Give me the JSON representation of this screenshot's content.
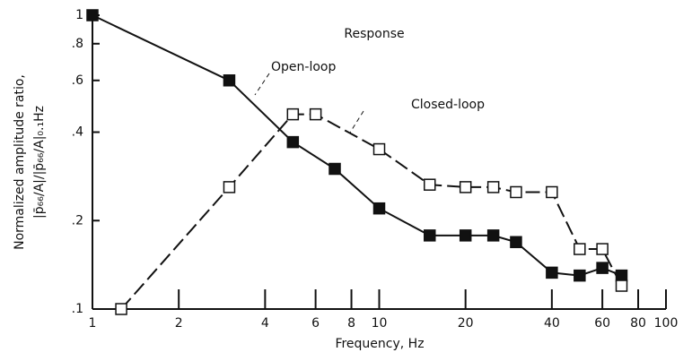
{
  "chart_data": {
    "type": "line",
    "title": "Response",
    "xlabel": "Frequency, Hz",
    "ylabel": [
      "Normalized amplitude ratio,",
      "|p̄₆₆/A|/|p̄₆₆/A|₀.₁Hz"
    ],
    "xlog": true,
    "ylog": true,
    "xlim": [
      1,
      100
    ],
    "ylim": [
      0.1,
      1
    ],
    "xticks": [
      1,
      2,
      4,
      6,
      8,
      10,
      20,
      40,
      60,
      80,
      100
    ],
    "yticks": [
      {
        "value": 0.1,
        "label": ".1"
      },
      {
        "value": 0.2,
        "label": ".2"
      },
      {
        "value": 0.4,
        "label": ".4"
      },
      {
        "value": 0.6,
        "label": ".6"
      },
      {
        "value": 0.8,
        "label": ".8"
      },
      1
    ],
    "series": [
      {
        "name": "Open-loop",
        "color": "#111111",
        "marker": "filled-square",
        "dash": "solid",
        "x": [
          1,
          3,
          5,
          7,
          10,
          15,
          20,
          25,
          30,
          40,
          50,
          60,
          70
        ],
        "values": [
          1,
          0.6,
          0.37,
          0.3,
          0.22,
          0.178,
          0.178,
          0.178,
          0.169,
          0.133,
          0.13,
          0.138,
          0.13
        ]
      },
      {
        "name": "Closed-loop",
        "color": "#111111",
        "marker": "open-square",
        "dash": "dashed",
        "x": [
          1.26,
          3,
          5,
          6,
          10,
          15,
          20,
          25,
          30,
          40,
          50,
          60,
          70
        ],
        "values": [
          0.1,
          0.26,
          0.46,
          0.46,
          0.35,
          0.265,
          0.26,
          0.26,
          0.25,
          0.25,
          0.16,
          0.16,
          0.12
        ]
      }
    ]
  }
}
